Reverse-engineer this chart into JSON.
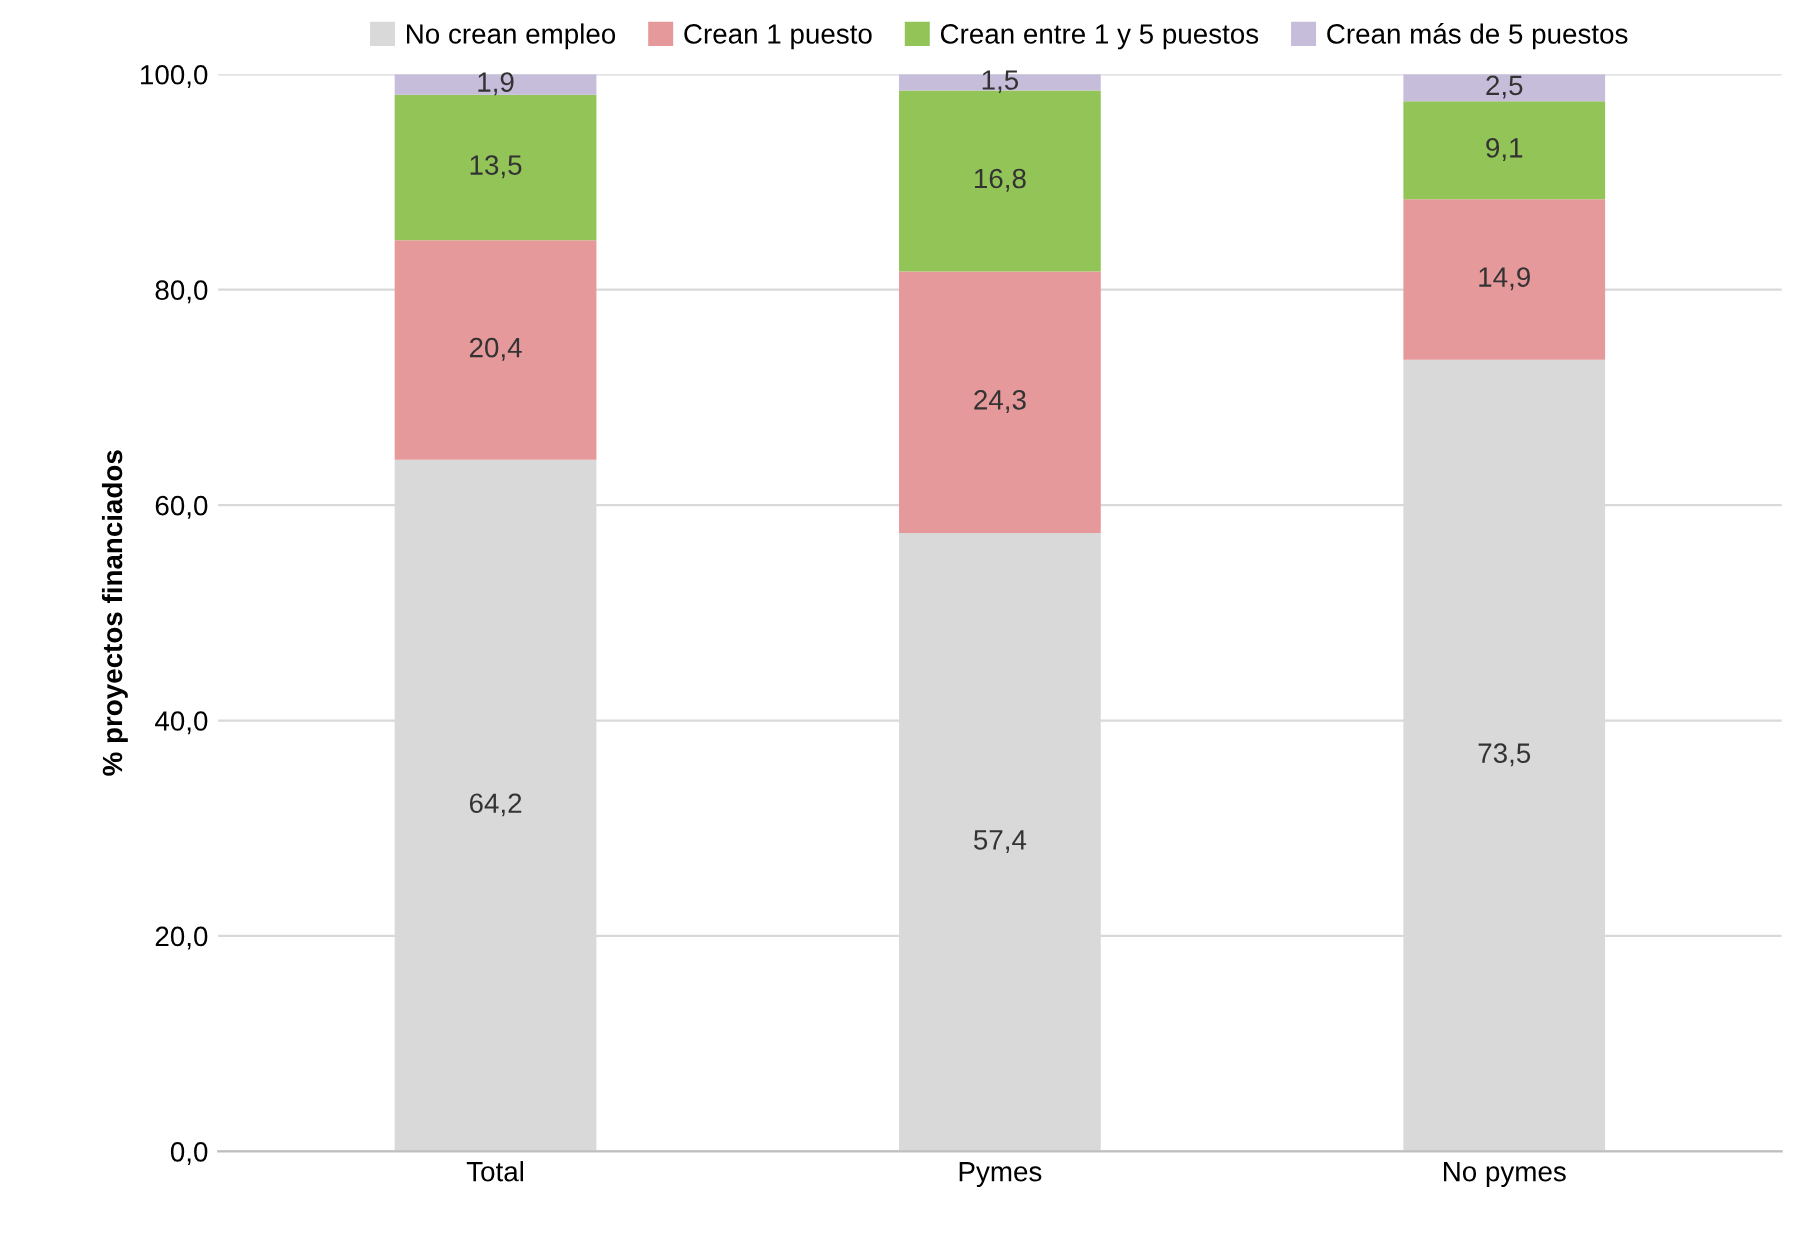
{
  "chart_data": {
    "type": "bar",
    "stacked": true,
    "ylabel": "% proyectos financiados",
    "categories": [
      "Total",
      "Pymes",
      "No pymes"
    ],
    "series": [
      {
        "name": "No crean empleo",
        "color": "#d9d9d9",
        "values": [
          64.2,
          57.4,
          73.5
        ],
        "value_labels": [
          "64,2",
          "57,4",
          "73,5"
        ]
      },
      {
        "name": "Crean 1 puesto",
        "color": "#e6999a",
        "values": [
          20.4,
          24.3,
          14.9
        ],
        "value_labels": [
          "20,4",
          "24,3",
          "14,9"
        ]
      },
      {
        "name": "Crean entre 1 y 5 puestos",
        "color": "#93c458",
        "values": [
          13.5,
          16.8,
          9.1
        ],
        "value_labels": [
          "13,5",
          "16,8",
          "9,1"
        ]
      },
      {
        "name": "Crean más de 5 puestos",
        "color": "#c6bddb",
        "values": [
          1.9,
          1.5,
          2.5
        ],
        "value_labels": [
          "1,9",
          "1,5",
          "2,5"
        ]
      }
    ],
    "ylim": [
      0,
      100
    ],
    "yticks": [
      {
        "value": 0,
        "label": "0,0"
      },
      {
        "value": 20,
        "label": "20,0"
      },
      {
        "value": 40,
        "label": "40,0"
      },
      {
        "value": 60,
        "label": "60,0"
      },
      {
        "value": 80,
        "label": "80,0"
      },
      {
        "value": 100,
        "label": "100,0"
      }
    ],
    "grid": "y",
    "legend": "top"
  }
}
